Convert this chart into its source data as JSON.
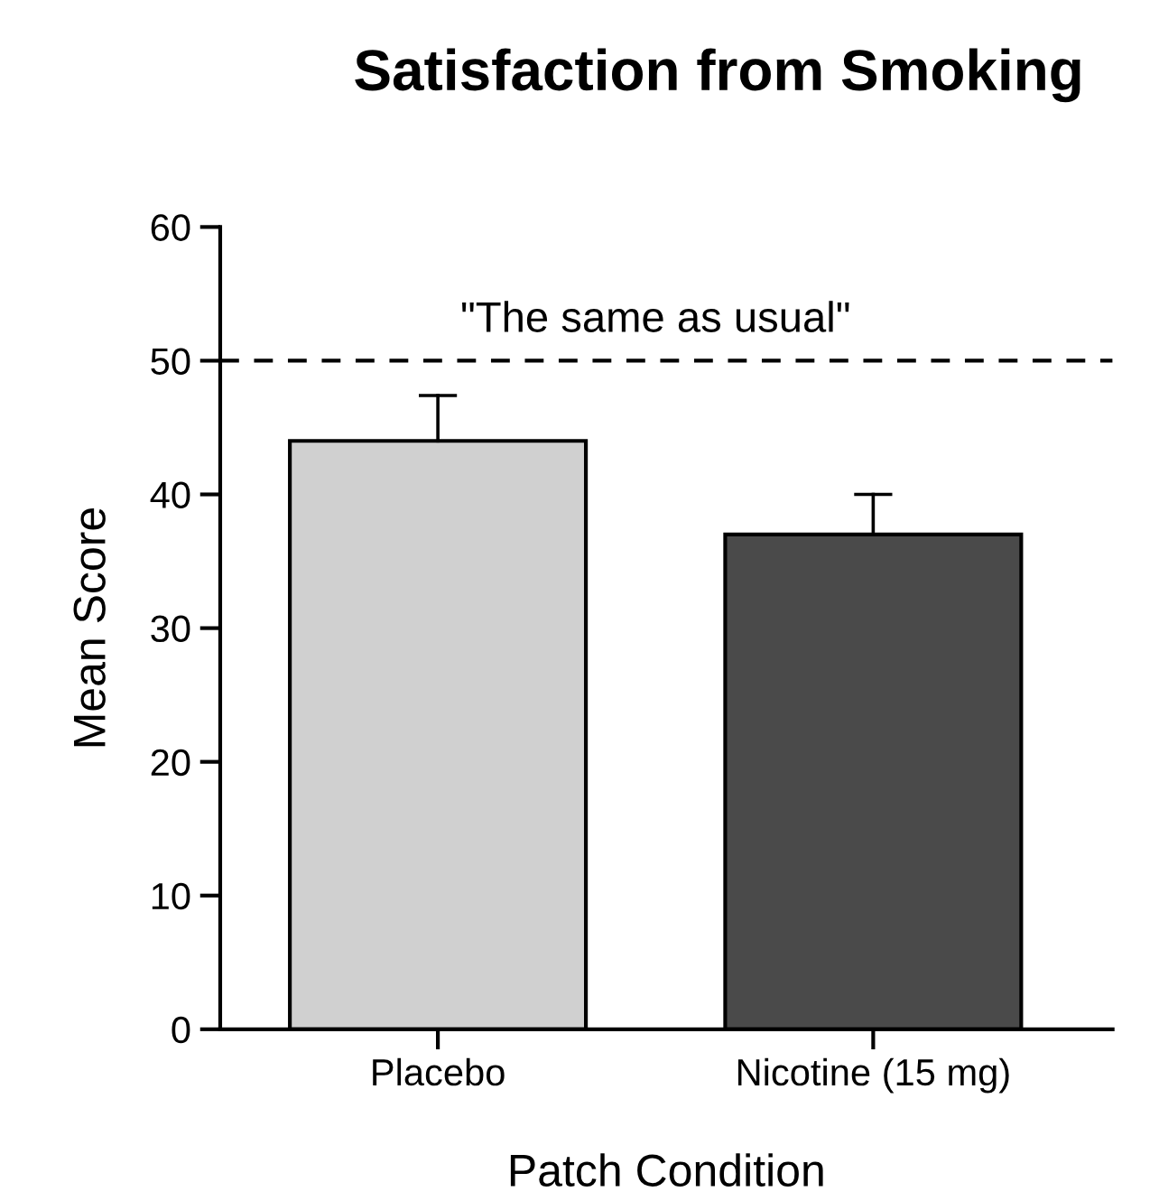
{
  "chart_data": {
    "type": "bar",
    "title": "Satisfaction from Smoking",
    "xlabel": "Patch Condition",
    "ylabel": "Mean Score",
    "categories": [
      "Placebo",
      "Nicotine (15 mg)"
    ],
    "values": [
      44,
      37
    ],
    "colors": [
      "#d0d0d0",
      "#4a4a4a"
    ],
    "errors": [
      [
        44,
        47.4
      ],
      [
        37,
        40
      ]
    ],
    "ylim": [
      0,
      60
    ],
    "yticks": [
      0,
      10,
      20,
      30,
      40,
      50,
      60
    ],
    "grid": false,
    "ref_lines": [
      {
        "axis": "y",
        "value": 50,
        "label": "\"The same as usual\"",
        "line_style": "dashed",
        "color": "#000000"
      }
    ]
  }
}
